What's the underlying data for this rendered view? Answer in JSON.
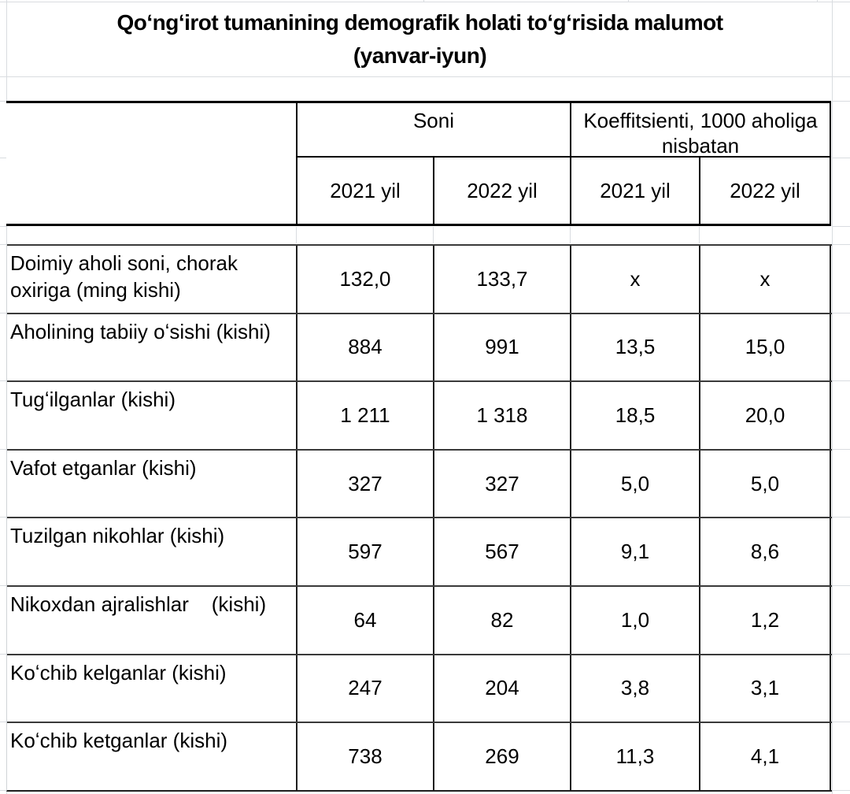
{
  "title": {
    "line1": "Qoʻngʻirot tumanining demografik holati toʻgʻrisida malumot",
    "line2": "(yanvar-iyun)"
  },
  "table": {
    "col_groups": [
      {
        "label": "Soni"
      },
      {
        "label": "Koeffitsienti, 1000 aholiga nisbatan"
      }
    ],
    "year_headers": [
      "2021 yil",
      "2022 yil",
      "2021 yil",
      "2022 yil"
    ],
    "rows": [
      {
        "label": "Doimiy aholi soni, chorak oxiriga (ming kishi)",
        "values": [
          "132,0",
          "133,7",
          "x",
          "x"
        ]
      },
      {
        "label": "Aholining tabiiy oʻsishi (kishi)",
        "values": [
          "884",
          "991",
          "13,5",
          "15,0"
        ]
      },
      {
        "label": "Tugʻilganlar (kishi)",
        "values": [
          "1 211",
          "1 318",
          "18,5",
          "20,0"
        ]
      },
      {
        "label": "Vafot etganlar (kishi)",
        "values": [
          "327",
          "327",
          "5,0",
          "5,0"
        ]
      },
      {
        "label": "Tuzilgan nikohlar (kishi)",
        "values": [
          "597",
          "567",
          "9,1",
          "8,6"
        ]
      },
      {
        "label": "Nikoxdan ajralishlar    (kishi)",
        "values": [
          "64",
          "82",
          "1,0",
          "1,2"
        ]
      },
      {
        "label": "Koʻchib kelganlar (kishi)",
        "values": [
          "247",
          "204",
          "3,8",
          "3,1"
        ]
      },
      {
        "label": "Koʻchib ketganlar (kishi)",
        "values": [
          "738",
          "269",
          "11,3",
          "4,1"
        ]
      }
    ]
  },
  "colors": {
    "table_border": "#000000",
    "row_separator": "#3a3a3a",
    "sheet_gridline": "#d9dce0",
    "text": "#000000",
    "background": "#ffffff"
  }
}
